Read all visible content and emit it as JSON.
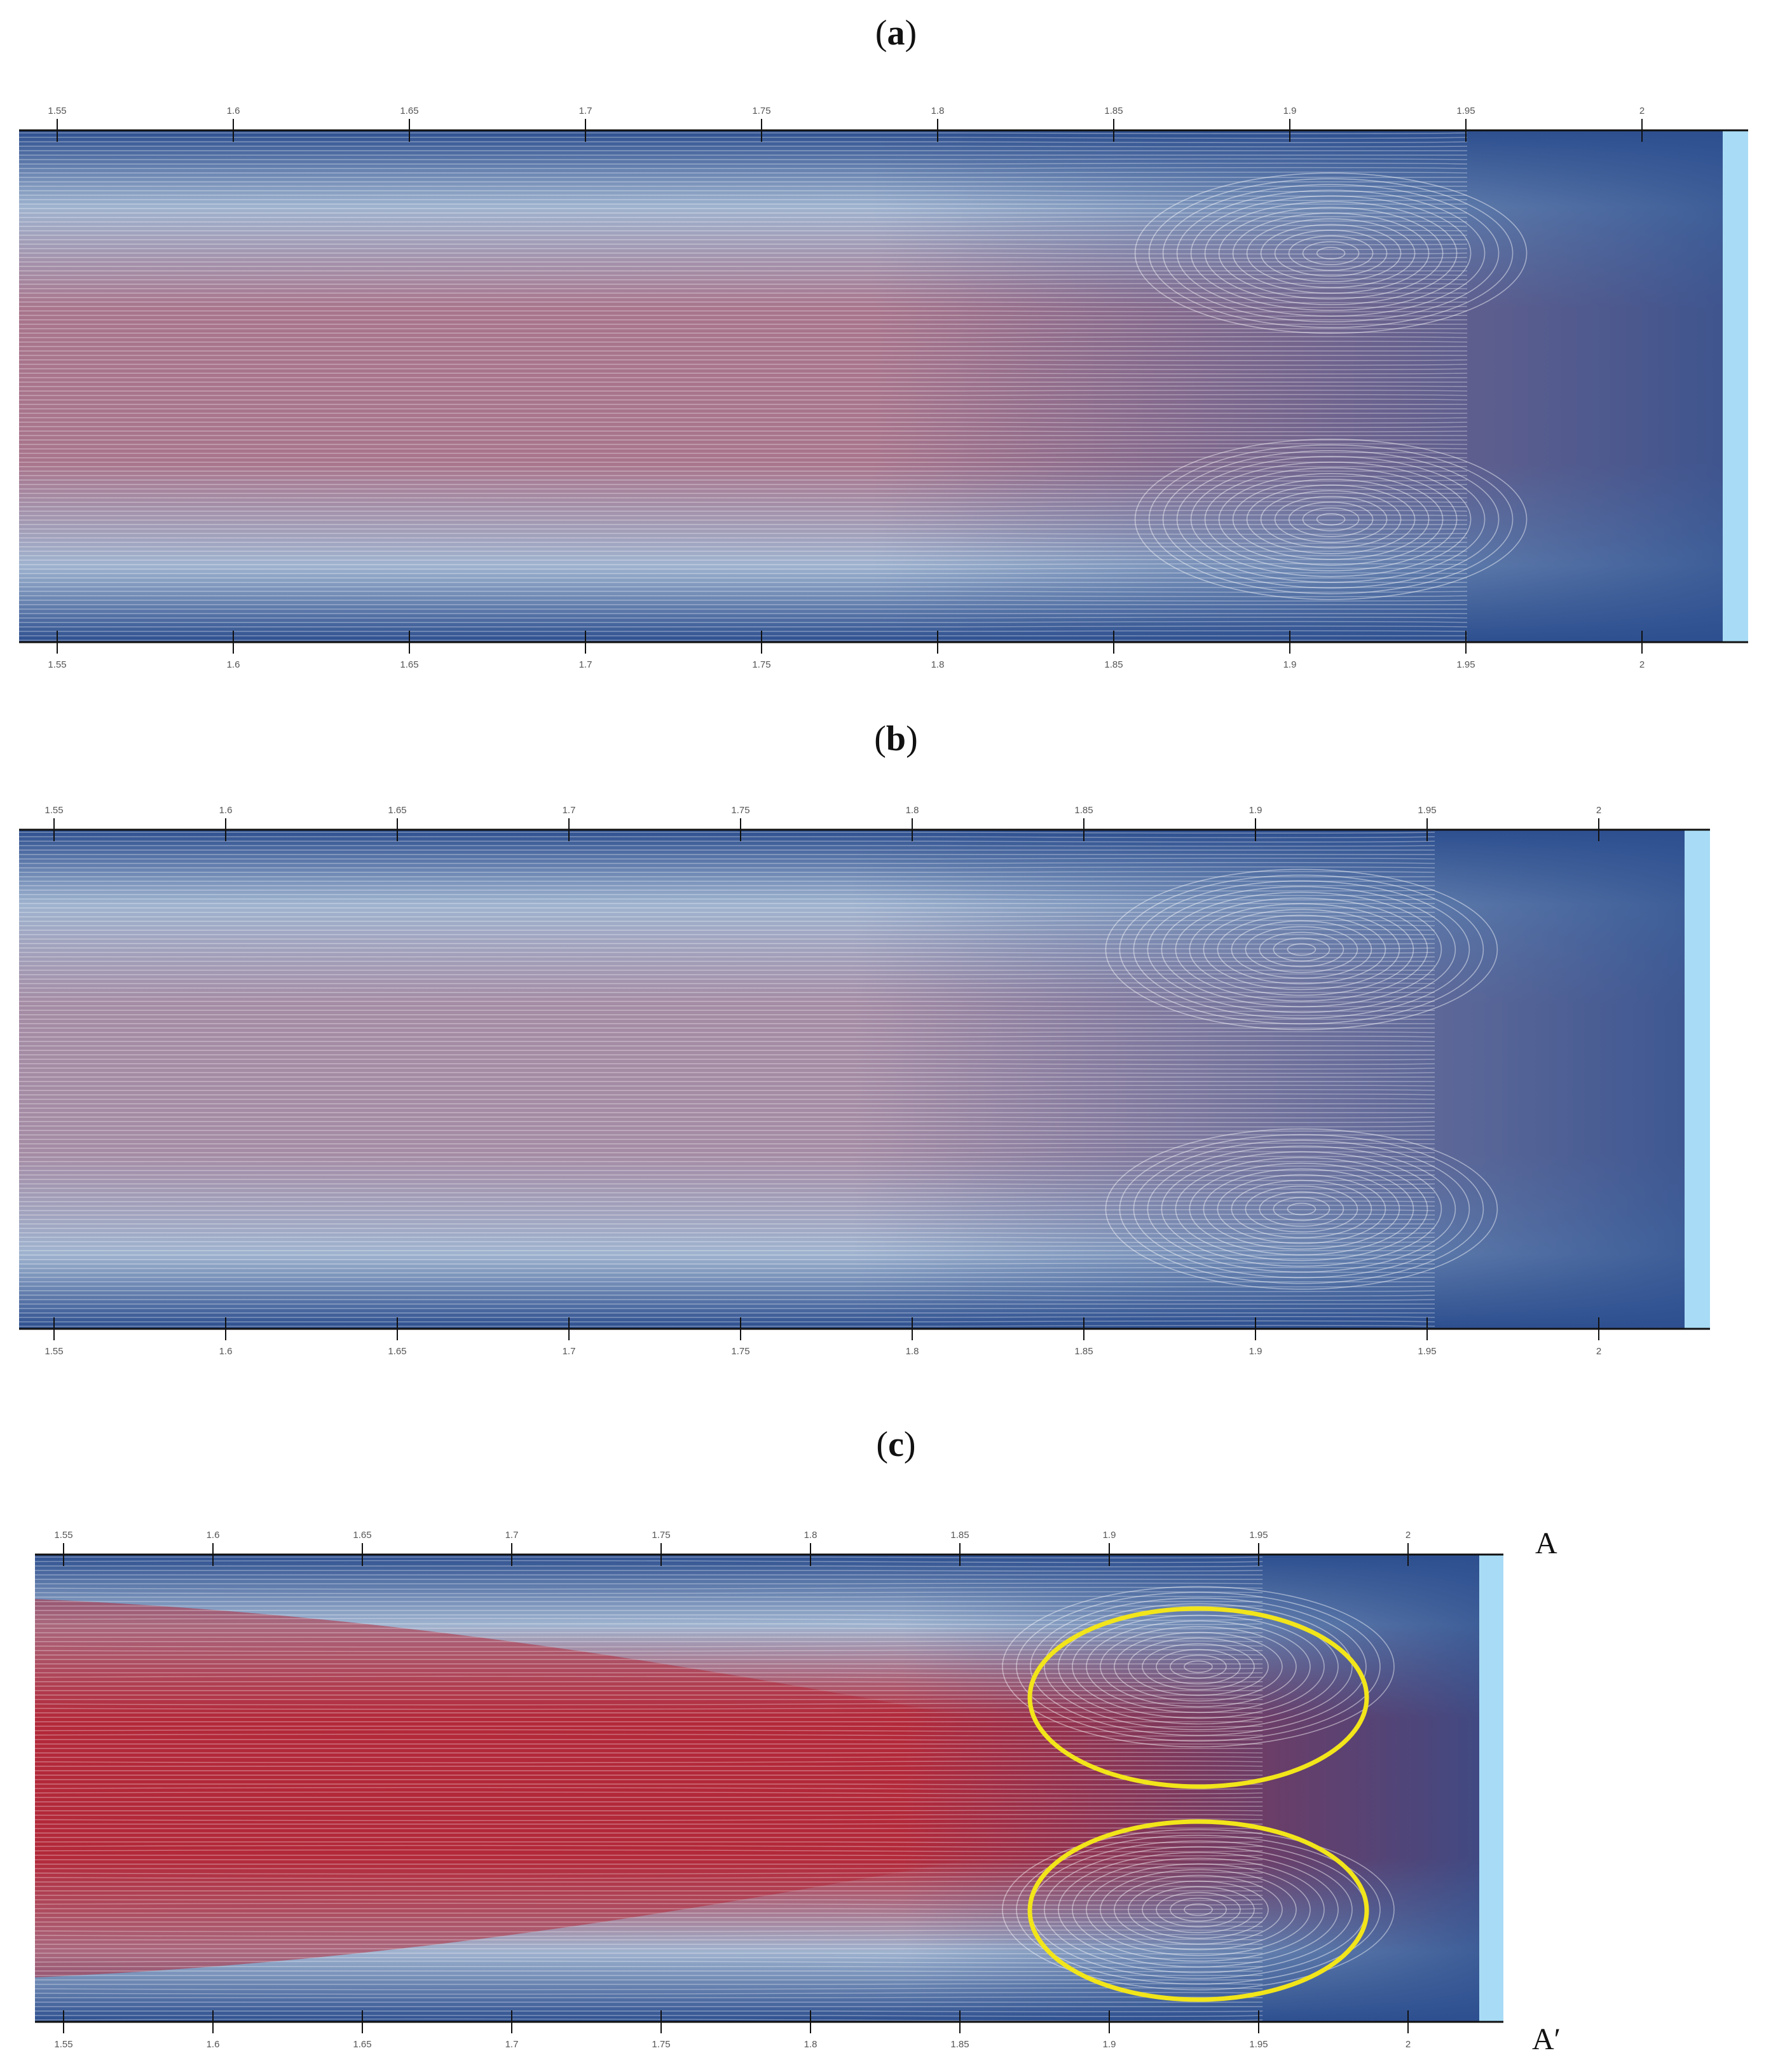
{
  "figure": {
    "panels": [
      {
        "id": "a",
        "label_prefix": "(",
        "label_letter": "a",
        "label_suffix": ")",
        "red_intensity": 0.45,
        "top_ticks": [
          "1.55",
          "1.6",
          "1.65",
          "1.7",
          "1.75",
          "1.8",
          "1.85",
          "1.9",
          "1.95",
          "2"
        ],
        "bottom_ticks": [
          "1.55",
          "1.6",
          "1.65",
          "1.7",
          "1.75",
          "1.8",
          "1.85",
          "1.9",
          "1.95",
          "2"
        ]
      },
      {
        "id": "b",
        "label_prefix": "(",
        "label_letter": "b",
        "label_suffix": ")",
        "red_intensity": 0.28,
        "top_ticks": [
          "1.55",
          "1.6",
          "1.65",
          "1.7",
          "1.75",
          "1.8",
          "1.85",
          "1.9",
          "1.95",
          "2"
        ],
        "bottom_ticks": [
          "1.55",
          "1.6",
          "1.65",
          "1.7",
          "1.75",
          "1.8",
          "1.85",
          "1.9",
          "1.95",
          "2"
        ]
      },
      {
        "id": "c",
        "label_prefix": "(",
        "label_letter": "c",
        "label_suffix": ")",
        "red_intensity": 1.0,
        "top_ticks": [
          "1.55",
          "1.6",
          "1.65",
          "1.7",
          "1.75",
          "1.8",
          "1.85",
          "1.9",
          "1.95",
          "2"
        ],
        "bottom_ticks": [
          "1.55",
          "1.6",
          "1.65",
          "1.7",
          "1.75",
          "1.8",
          "1.85",
          "1.9",
          "1.95",
          "2"
        ],
        "section_top": "A",
        "section_bottom": "A′"
      }
    ],
    "colors": {
      "blue": "#2d4f8f",
      "light_blue": "#9fb3cf",
      "red": "#b3293a",
      "wall": "#a8dcf6",
      "highlight": "#f2e51a"
    }
  }
}
